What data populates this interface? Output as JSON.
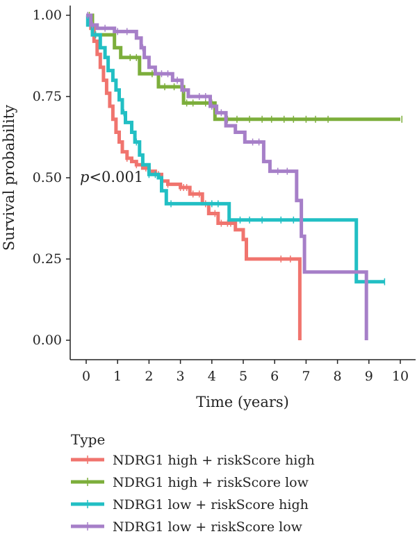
{
  "chart_data": {
    "type": "line",
    "subtype": "kaplan-meier step",
    "xlabel": "Time (years)",
    "ylabel": "Survival probability",
    "xlim": [
      0,
      10
    ],
    "ylim": [
      0,
      1
    ],
    "x_ticks": [
      0,
      1,
      2,
      3,
      4,
      5,
      6,
      7,
      8,
      9,
      10
    ],
    "y_ticks": [
      0,
      0.25,
      0.5,
      0.75,
      1
    ],
    "y_tick_labels": [
      "0.00",
      "0.25",
      "0.50",
      "0.75",
      "1.00"
    ],
    "annotation": {
      "italic": "p",
      "text": "<0.001"
    },
    "legend": {
      "title": "Type",
      "position": "bottom"
    },
    "grid": false,
    "series": [
      {
        "name": "NDRG1 high + riskScore high",
        "color": "#F0746E",
        "points": [
          [
            0,
            1.0
          ],
          [
            0.15,
            0.96
          ],
          [
            0.25,
            0.92
          ],
          [
            0.35,
            0.88
          ],
          [
            0.45,
            0.84
          ],
          [
            0.55,
            0.8
          ],
          [
            0.65,
            0.76
          ],
          [
            0.75,
            0.72
          ],
          [
            0.85,
            0.68
          ],
          [
            0.95,
            0.64
          ],
          [
            1.05,
            0.61
          ],
          [
            1.15,
            0.58
          ],
          [
            1.3,
            0.56
          ],
          [
            1.45,
            0.55
          ],
          [
            1.6,
            0.54
          ],
          [
            1.8,
            0.53
          ],
          [
            2.0,
            0.52
          ],
          [
            2.2,
            0.51
          ],
          [
            2.4,
            0.49
          ],
          [
            2.6,
            0.48
          ],
          [
            3.0,
            0.47
          ],
          [
            3.3,
            0.45
          ],
          [
            3.7,
            0.42
          ],
          [
            3.9,
            0.39
          ],
          [
            4.2,
            0.36
          ],
          [
            4.75,
            0.34
          ],
          [
            5.0,
            0.31
          ],
          [
            5.1,
            0.25
          ],
          [
            6.8,
            0.25
          ],
          [
            6.8,
            0.0
          ]
        ],
        "censor_x": [
          1.3,
          1.6,
          1.9,
          2.3,
          2.6,
          3.0,
          3.1,
          3.2,
          3.4,
          3.6,
          3.8,
          4.1,
          4.3,
          4.5,
          4.6,
          6.2,
          6.5
        ]
      },
      {
        "name": "NDRG1 high + riskScore low",
        "color": "#7CAE3B",
        "points": [
          [
            0,
            1.0
          ],
          [
            0.2,
            0.94
          ],
          [
            0.9,
            0.9
          ],
          [
            1.1,
            0.87
          ],
          [
            1.7,
            0.82
          ],
          [
            2.3,
            0.78
          ],
          [
            3.1,
            0.73
          ],
          [
            4.1,
            0.68
          ],
          [
            10.0,
            0.68
          ]
        ],
        "censor_x": [
          0.1,
          0.3,
          1.4,
          1.6,
          2.1,
          2.5,
          2.8,
          3.2,
          3.4,
          3.8,
          4.0,
          4.5,
          4.8,
          5.2,
          5.6,
          5.9,
          6.3,
          6.6,
          7.0,
          7.3,
          7.7,
          10.05
        ]
      },
      {
        "name": "NDRG1 low + riskScore high",
        "color": "#22BFC4",
        "points": [
          [
            0,
            1.0
          ],
          [
            0.05,
            0.97
          ],
          [
            0.2,
            0.94
          ],
          [
            0.45,
            0.9
          ],
          [
            0.6,
            0.87
          ],
          [
            0.7,
            0.83
          ],
          [
            0.85,
            0.8
          ],
          [
            0.95,
            0.77
          ],
          [
            1.05,
            0.74
          ],
          [
            1.15,
            0.7
          ],
          [
            1.25,
            0.67
          ],
          [
            1.45,
            0.64
          ],
          [
            1.55,
            0.61
          ],
          [
            1.7,
            0.57
          ],
          [
            1.8,
            0.54
          ],
          [
            2.0,
            0.51
          ],
          [
            2.3,
            0.5
          ],
          [
            2.4,
            0.46
          ],
          [
            2.55,
            0.42
          ],
          [
            4.45,
            0.42
          ],
          [
            4.55,
            0.37
          ],
          [
            8.55,
            0.37
          ],
          [
            8.6,
            0.18
          ],
          [
            9.5,
            0.18
          ]
        ],
        "censor_x": [
          0.3,
          1.2,
          1.6,
          2.0,
          2.2,
          2.7,
          4.0,
          4.2,
          4.9,
          5.2,
          5.6,
          6.2,
          6.6,
          9.5
        ]
      },
      {
        "name": "NDRG1 low + riskScore low",
        "color": "#A67FC8",
        "points": [
          [
            0,
            1.0
          ],
          [
            0.15,
            0.97
          ],
          [
            0.35,
            0.96
          ],
          [
            0.9,
            0.95
          ],
          [
            1.6,
            0.93
          ],
          [
            1.75,
            0.9
          ],
          [
            1.85,
            0.87
          ],
          [
            2.0,
            0.84
          ],
          [
            2.2,
            0.82
          ],
          [
            2.75,
            0.8
          ],
          [
            3.05,
            0.77
          ],
          [
            3.25,
            0.75
          ],
          [
            3.95,
            0.72
          ],
          [
            4.15,
            0.7
          ],
          [
            4.45,
            0.66
          ],
          [
            4.75,
            0.64
          ],
          [
            5.05,
            0.61
          ],
          [
            5.65,
            0.55
          ],
          [
            5.85,
            0.52
          ],
          [
            6.7,
            0.43
          ],
          [
            6.85,
            0.32
          ],
          [
            6.95,
            0.21
          ],
          [
            8.85,
            0.21
          ],
          [
            8.92,
            0.0
          ]
        ],
        "censor_x": [
          0.05,
          0.2,
          0.6,
          1.0,
          1.3,
          1.8,
          2.4,
          2.6,
          2.9,
          3.1,
          3.6,
          3.8,
          4.0,
          4.3,
          5.3,
          5.5,
          6.1,
          6.4
        ]
      }
    ]
  }
}
